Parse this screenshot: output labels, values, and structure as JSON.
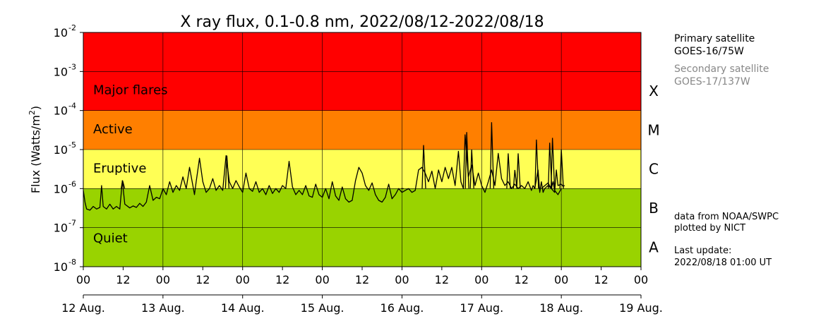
{
  "chart_data": {
    "type": "line",
    "title": "X ray flux, 0.1-0.8 nm, 2022/08/12-2022/08/18",
    "ylabel": "Flux (Watts/m",
    "ylabel_sup": "2",
    "ylabel_close": ")",
    "y_scale": "log",
    "ylim": [
      1e-08,
      0.01
    ],
    "y_ticks": [
      {
        "exp": "-8",
        "value": 1e-08
      },
      {
        "exp": "-7",
        "value": 1e-07
      },
      {
        "exp": "-6",
        "value": 1e-06
      },
      {
        "exp": "-5",
        "value": 1e-05
      },
      {
        "exp": "-4",
        "value": 0.0001
      },
      {
        "exp": "-3",
        "value": 0.001
      },
      {
        "exp": "-2",
        "value": 0.01
      }
    ],
    "y_tick_base": "10",
    "x_range": [
      "2022-08-12 00:00",
      "2022-08-19 00:00"
    ],
    "x_hour_ticks": [
      "00",
      "12",
      "00",
      "12",
      "00",
      "12",
      "00",
      "12",
      "00",
      "12",
      "00",
      "12",
      "00",
      "12",
      "00"
    ],
    "x_day_ticks": [
      "12 Aug.",
      "13 Aug.",
      "14 Aug.",
      "15 Aug.",
      "16 Aug.",
      "17 Aug.",
      "18 Aug.",
      "19 Aug."
    ],
    "grid": true,
    "bands": [
      {
        "name": "Major flares",
        "from": 0.0001,
        "to": 0.01,
        "color": "#ff0000"
      },
      {
        "name": "Active",
        "from": 1e-05,
        "to": 0.0001,
        "color": "#ff7f00"
      },
      {
        "name": "Eruptive",
        "from": 1e-06,
        "to": 1e-05,
        "color": "#ffff55"
      },
      {
        "name": "Quiet",
        "from": 1e-08,
        "to": 1e-06,
        "color": "#99d300"
      }
    ],
    "flare_classes": [
      {
        "label": "X",
        "value": 0.000316
      },
      {
        "label": "M",
        "value": 3.16e-05
      },
      {
        "label": "C",
        "value": 3.16e-06
      },
      {
        "label": "B",
        "value": 3.16e-07
      },
      {
        "label": "A",
        "value": 3.16e-08
      }
    ],
    "series": [
      {
        "line_color": "#000000",
        "points": [
          [
            "2022-08-12 00:00",
            9e-07
          ],
          [
            "2022-08-12 00:30",
            4.5e-07
          ],
          [
            "2022-08-12 01:00",
            3e-07
          ],
          [
            "2022-08-12 02:00",
            2.8e-07
          ],
          [
            "2022-08-12 03:00",
            3.5e-07
          ],
          [
            "2022-08-12 04:00",
            3e-07
          ],
          [
            "2022-08-12 05:00",
            3.3e-07
          ],
          [
            "2022-08-12 05:30",
            1.2e-06
          ],
          [
            "2022-08-12 06:00",
            3.5e-07
          ],
          [
            "2022-08-12 07:00",
            3e-07
          ],
          [
            "2022-08-12 08:00",
            4e-07
          ],
          [
            "2022-08-12 09:00",
            3e-07
          ],
          [
            "2022-08-12 10:00",
            3.5e-07
          ],
          [
            "2022-08-12 11:00",
            3e-07
          ],
          [
            "2022-08-12 11:45",
            1.6e-06
          ],
          [
            "2022-08-12 12:30",
            4e-07
          ],
          [
            "2022-08-12 14:00",
            3.2e-07
          ],
          [
            "2022-08-12 15:00",
            3.6e-07
          ],
          [
            "2022-08-12 16:00",
            3.3e-07
          ],
          [
            "2022-08-12 17:00",
            4.2e-07
          ],
          [
            "2022-08-12 18:00",
            3.5e-07
          ],
          [
            "2022-08-12 19:00",
            4.5e-07
          ],
          [
            "2022-08-12 20:00",
            1.2e-06
          ],
          [
            "2022-08-12 21:00",
            5e-07
          ],
          [
            "2022-08-12 22:00",
            6e-07
          ],
          [
            "2022-08-12 23:00",
            5.5e-07
          ],
          [
            "2022-08-13 00:00",
            1e-06
          ],
          [
            "2022-08-13 01:00",
            7e-07
          ],
          [
            "2022-08-13 02:00",
            1.5e-06
          ],
          [
            "2022-08-13 03:00",
            8e-07
          ],
          [
            "2022-08-13 04:00",
            1.2e-06
          ],
          [
            "2022-08-13 05:00",
            9e-07
          ],
          [
            "2022-08-13 06:00",
            2e-06
          ],
          [
            "2022-08-13 07:00",
            1e-06
          ],
          [
            "2022-08-13 08:00",
            3.5e-06
          ],
          [
            "2022-08-13 09:00",
            1.2e-06
          ],
          [
            "2022-08-13 09:30",
            7e-07
          ],
          [
            "2022-08-13 10:00",
            1.5e-06
          ],
          [
            "2022-08-13 11:00",
            6e-06
          ],
          [
            "2022-08-13 12:00",
            1.5e-06
          ],
          [
            "2022-08-13 13:00",
            8e-07
          ],
          [
            "2022-08-13 14:00",
            1e-06
          ],
          [
            "2022-08-13 15:00",
            1.8e-06
          ],
          [
            "2022-08-13 16:00",
            9e-07
          ],
          [
            "2022-08-13 17:00",
            1.2e-06
          ],
          [
            "2022-08-13 18:00",
            9e-07
          ],
          [
            "2022-08-13 19:00",
            7e-06
          ],
          [
            "2022-08-13 20:00",
            1.5e-06
          ],
          [
            "2022-08-13 21:00",
            1e-06
          ],
          [
            "2022-08-13 22:00",
            1.6e-06
          ],
          [
            "2022-08-13 23:00",
            1.1e-06
          ],
          [
            "2022-08-14 00:00",
            8e-07
          ],
          [
            "2022-08-14 01:00",
            2.5e-06
          ],
          [
            "2022-08-14 02:00",
            1e-06
          ],
          [
            "2022-08-14 03:00",
            8.5e-07
          ],
          [
            "2022-08-14 04:00",
            1.5e-06
          ],
          [
            "2022-08-14 05:00",
            8e-07
          ],
          [
            "2022-08-14 06:00",
            1e-06
          ],
          [
            "2022-08-14 07:00",
            7e-07
          ],
          [
            "2022-08-14 08:00",
            1.2e-06
          ],
          [
            "2022-08-14 09:00",
            7.5e-07
          ],
          [
            "2022-08-14 10:00",
            1e-06
          ],
          [
            "2022-08-14 11:00",
            8e-07
          ],
          [
            "2022-08-14 12:00",
            1.2e-06
          ],
          [
            "2022-08-14 13:00",
            1e-06
          ],
          [
            "2022-08-14 14:00",
            5e-06
          ],
          [
            "2022-08-14 15:00",
            1.1e-06
          ],
          [
            "2022-08-14 16:00",
            7e-07
          ],
          [
            "2022-08-14 17:00",
            9e-07
          ],
          [
            "2022-08-14 18:00",
            7e-07
          ],
          [
            "2022-08-14 19:00",
            1.2e-06
          ],
          [
            "2022-08-14 20:00",
            6.5e-07
          ],
          [
            "2022-08-14 21:00",
            6e-07
          ],
          [
            "2022-08-14 22:00",
            1.3e-06
          ],
          [
            "2022-08-14 23:00",
            7e-07
          ],
          [
            "2022-08-15 00:00",
            6e-07
          ],
          [
            "2022-08-15 01:00",
            1e-06
          ],
          [
            "2022-08-15 02:00",
            5.5e-07
          ],
          [
            "2022-08-15 03:00",
            1.5e-06
          ],
          [
            "2022-08-15 04:00",
            6.5e-07
          ],
          [
            "2022-08-15 05:00",
            5e-07
          ],
          [
            "2022-08-15 06:00",
            1.1e-06
          ],
          [
            "2022-08-15 07:00",
            5.5e-07
          ],
          [
            "2022-08-15 08:00",
            4.5e-07
          ],
          [
            "2022-08-15 09:00",
            5e-07
          ],
          [
            "2022-08-15 10:00",
            1.6e-06
          ],
          [
            "2022-08-15 11:00",
            3.5e-06
          ],
          [
            "2022-08-15 12:00",
            2.5e-06
          ],
          [
            "2022-08-15 13:00",
            1.2e-06
          ],
          [
            "2022-08-15 14:00",
            9e-07
          ],
          [
            "2022-08-15 15:00",
            1.4e-06
          ],
          [
            "2022-08-15 16:00",
            7e-07
          ],
          [
            "2022-08-15 17:00",
            5e-07
          ],
          [
            "2022-08-15 18:00",
            4.5e-07
          ],
          [
            "2022-08-15 19:00",
            6e-07
          ],
          [
            "2022-08-15 20:00",
            1.3e-06
          ],
          [
            "2022-08-15 21:00",
            5.5e-07
          ],
          [
            "2022-08-15 22:00",
            7e-07
          ],
          [
            "2022-08-15 23:00",
            1e-06
          ],
          [
            "2022-08-16 00:00",
            8e-07
          ],
          [
            "2022-08-16 01:00",
            9e-07
          ],
          [
            "2022-08-16 02:00",
            1e-06
          ],
          [
            "2022-08-16 03:00",
            8e-07
          ],
          [
            "2022-08-16 04:00",
            9e-07
          ],
          [
            "2022-08-16 05:00",
            3e-06
          ],
          [
            "2022-08-16 06:00",
            3.5e-06
          ],
          [
            "2022-08-16 07:00",
            2.5e-06
          ],
          [
            "2022-08-16 08:00",
            1.5e-06
          ],
          [
            "2022-08-16 09:00",
            2.8e-06
          ],
          [
            "2022-08-16 10:00",
            1e-06
          ],
          [
            "2022-08-16 11:00",
            3e-06
          ],
          [
            "2022-08-16 12:00",
            1.5e-06
          ],
          [
            "2022-08-16 13:00",
            3.5e-06
          ],
          [
            "2022-08-16 14:00",
            1.8e-06
          ],
          [
            "2022-08-16 15:00",
            3.5e-06
          ],
          [
            "2022-08-16 16:00",
            1.2e-06
          ],
          [
            "2022-08-16 17:00",
            9e-06
          ],
          [
            "2022-08-16 17:45",
            1.5e-06
          ],
          [
            "2022-08-16 18:30",
            1e-06
          ],
          [
            "2022-08-16 19:00",
            2.4e-05
          ],
          [
            "2022-08-16 20:00",
            2e-06
          ],
          [
            "2022-08-16 21:00",
            4e-06
          ],
          [
            "2022-08-16 22:00",
            1.2e-06
          ],
          [
            "2022-08-16 23:00",
            2.5e-06
          ],
          [
            "2022-08-17 00:00",
            1.2e-06
          ],
          [
            "2022-08-17 01:00",
            8e-07
          ],
          [
            "2022-08-17 02:00",
            1.5e-06
          ],
          [
            "2022-08-17 03:00",
            3e-06
          ],
          [
            "2022-08-17 04:00",
            1.2e-06
          ],
          [
            "2022-08-17 05:00",
            8e-06
          ],
          [
            "2022-08-17 06:00",
            1.8e-06
          ],
          [
            "2022-08-17 07:00",
            1.2e-06
          ],
          [
            "2022-08-17 08:00",
            1.5e-06
          ],
          [
            "2022-08-17 09:00",
            1e-06
          ],
          [
            "2022-08-17 10:00",
            1.3e-06
          ],
          [
            "2022-08-17 11:00",
            1e-06
          ],
          [
            "2022-08-17 12:00",
            1.2e-06
          ],
          [
            "2022-08-17 13:00",
            1e-06
          ],
          [
            "2022-08-17 14:00",
            1.5e-06
          ],
          [
            "2022-08-17 15:00",
            9e-07
          ],
          [
            "2022-08-17 15:30",
            1.2e-06
          ],
          [
            "2022-08-17 16:00",
            1e-06
          ],
          [
            "2022-08-17 17:00",
            3e-06
          ],
          [
            "2022-08-17 17:30",
            8e-07
          ],
          [
            "2022-08-17 18:00",
            1.5e-06
          ],
          [
            "2022-08-17 18:30",
            8e-07
          ],
          [
            "2022-08-17 19:00",
            1e-06
          ],
          [
            "2022-08-17 20:00",
            1.2e-06
          ],
          [
            "2022-08-17 21:00",
            1e-06
          ],
          [
            "2022-08-17 22:00",
            8e-07
          ],
          [
            "2022-08-17 22:30",
            3e-06
          ],
          [
            "2022-08-17 23:00",
            1.2e-06
          ],
          [
            "2022-08-18 00:00",
            1.3e-06
          ],
          [
            "2022-08-18 00:30",
            1.15e-06
          ],
          [
            "2022-08-18 01:00",
            1.2e-06
          ]
        ]
      },
      {
        "line_color": "#000000",
        "points": [
          [
            "2022-08-15 23:45",
            1e-06
          ],
          [
            "2022-08-16 00:30",
            1e-06
          ]
        ]
      },
      {
        "line_color": "#000000",
        "points": [
          [
            "2022-08-17 18:00",
            1e-06
          ],
          [
            "2022-08-17 20:00",
            1.4e-06
          ],
          [
            "2022-08-17 21:00",
            1e-06
          ],
          [
            "2022-08-17 21:30",
            1.5e-06
          ],
          [
            "2022-08-17 22:00",
            9e-07
          ],
          [
            "2022-08-17 23:00",
            7e-07
          ],
          [
            "2022-08-18 00:00",
            1e-06
          ]
        ]
      }
    ],
    "peaks": [
      [
        "2022-08-12 11:50",
        1.6e-06
      ],
      [
        "2022-08-13 19:15",
        7e-06
      ],
      [
        "2022-08-16 19:30",
        2.8e-05
      ],
      [
        "2022-08-16 21:00",
        1e-05
      ],
      [
        "2022-08-16 06:30",
        1.3e-05
      ],
      [
        "2022-08-17 03:00",
        5e-05
      ],
      [
        "2022-08-17 08:00",
        8e-06
      ],
      [
        "2022-08-17 11:00",
        8e-06
      ],
      [
        "2022-08-17 16:30",
        1.8e-05
      ],
      [
        "2022-08-17 10:00",
        3e-06
      ],
      [
        "2022-08-17 21:20",
        2e-05
      ],
      [
        "2022-08-18 00:00",
        1e-05
      ],
      [
        "2022-08-17 20:30",
        1.5e-05
      ]
    ]
  },
  "info": {
    "primary_label": "Primary satellite",
    "primary_sat": "GOES-16/75W",
    "secondary_label": "Secondary satellite",
    "secondary_sat": "GOES-17/137W",
    "secondary_color": "#888888",
    "source_line1": "data from NOAA/SWPC",
    "source_line2": "plotted by NICT",
    "update_label": "Last update:",
    "update_value": "2022/08/18 01:00 UT"
  }
}
